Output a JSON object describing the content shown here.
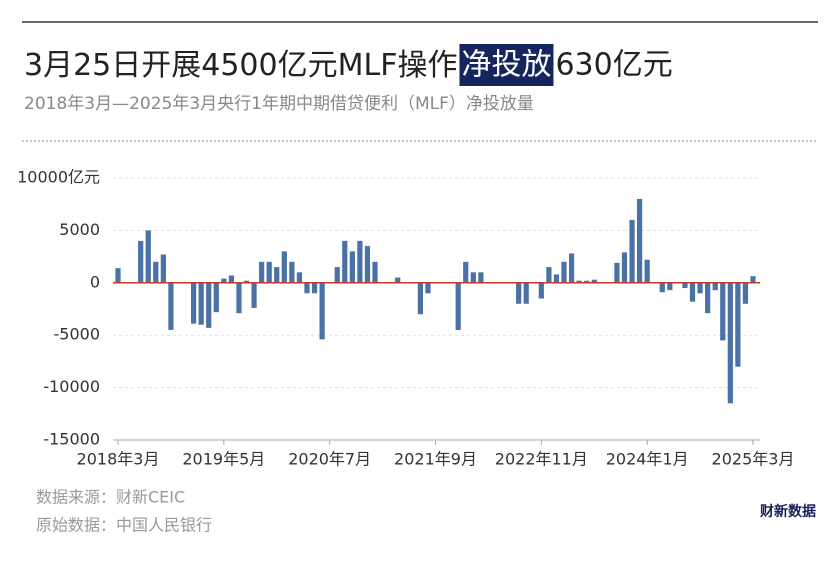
{
  "chart_data": {
    "type": "bar",
    "title": {
      "before": "3月25日开展4500亿元MLF操作 ",
      "highlight": "净投放",
      "after": "630亿元"
    },
    "subtitle": "2018年3月—2025年3月央行1年期中期借贷便利（MLF）净投放量",
    "sources": [
      "数据来源：财新CEIC",
      "原始数据：中国人民银行"
    ],
    "logo": "财新数据",
    "categories": [
      "2018年3月",
      null,
      null,
      null,
      null,
      null,
      null,
      null,
      null,
      null,
      null,
      null,
      null,
      null,
      "2019年5月",
      null,
      null,
      null,
      null,
      null,
      null,
      null,
      null,
      null,
      null,
      null,
      null,
      null,
      "2020年7月",
      null,
      null,
      null,
      null,
      null,
      null,
      null,
      null,
      null,
      null,
      null,
      null,
      null,
      "2021年9月",
      null,
      null,
      null,
      null,
      null,
      null,
      null,
      null,
      null,
      null,
      null,
      null,
      null,
      "2022年11月",
      null,
      null,
      null,
      null,
      null,
      null,
      null,
      null,
      null,
      null,
      null,
      null,
      null,
      "2024年1月",
      null,
      null,
      null,
      null,
      null,
      null,
      null,
      null,
      null,
      null,
      null,
      null,
      null,
      "2025年3月"
    ],
    "values": [
      1400,
      0,
      0,
      4000,
      5000,
      2000,
      2700,
      -4500,
      0,
      0,
      -3900,
      -4000,
      -4300,
      -2800,
      400,
      700,
      -2900,
      200,
      -2400,
      2000,
      2000,
      1500,
      3000,
      2000,
      1000,
      -1000,
      -1000,
      -5400,
      0,
      1500,
      4000,
      3000,
      4000,
      3500,
      2000,
      0,
      0,
      500,
      0,
      0,
      -3000,
      -1000,
      0,
      0,
      0,
      -4500,
      2000,
      1000,
      1000,
      0,
      0,
      0,
      0,
      -2000,
      -2000,
      0,
      -1500,
      1500,
      800,
      2000,
      2800,
      200,
      200,
      300,
      0,
      0,
      1900,
      2900,
      6000,
      8000,
      2200,
      0,
      -900,
      -700,
      0,
      -500,
      -1800,
      -1000,
      -2900,
      -700,
      -5500,
      -11500,
      -8000,
      -2000,
      630
    ],
    "color": "#4a72a6",
    "zero_line_color": "#c0392b",
    "ylim": [
      -15000,
      10000
    ],
    "yticks": [
      {
        "value": 10000,
        "label": "10000亿元"
      },
      5000,
      0,
      -5000,
      -10000,
      -15000
    ],
    "grid": true
  }
}
